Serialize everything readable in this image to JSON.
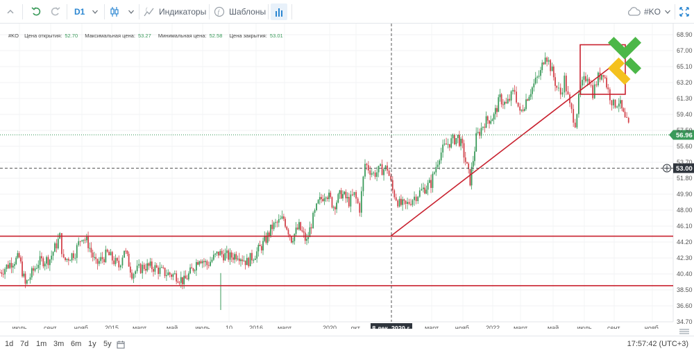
{
  "toolbar": {
    "timeframe": "D1",
    "indicators_label": "Индикаторы",
    "templates_label": "Шаблоны",
    "symbol": "#KO"
  },
  "ohlc": {
    "symbol": "#KO",
    "open_label": "Цена открытия:",
    "open_value": "52.70",
    "high_label": "Максимальная цена:",
    "high_value": "53.27",
    "low_label": "Минимальная цена:",
    "low_value": "52.58",
    "close_label": "Цена закрытия:",
    "close_value": "53.01"
  },
  "bottom": {
    "ranges": [
      "1d",
      "7d",
      "1m",
      "3m",
      "6m",
      "1y",
      "5y"
    ],
    "clock": "17:57:42 (UTC+3)"
  },
  "colors": {
    "up": "#3a9a5a",
    "down": "#d3434b",
    "annotation": "#c8202e",
    "price_badge": "#3a9a5a",
    "crosshair_badge": "#2f353d",
    "accent": "#2a86d1",
    "logo_green": "#4cb748",
    "logo_yellow": "#f4c11e"
  },
  "chart_data": {
    "type": "candlestick",
    "symbol": "#KO",
    "current_price": "56.96",
    "crosshair_price": "53.00",
    "crosshair_date": "8 дек. 2020 г.",
    "y_ticks": [
      "68.90",
      "67.00",
      "65.10",
      "63.20",
      "61.30",
      "59.40",
      "57.50",
      "55.60",
      "53.70",
      "51.80",
      "49.90",
      "48.00",
      "46.10",
      "44.20",
      "42.30",
      "40.40",
      "38.50",
      "36.60",
      "34.70"
    ],
    "x_ticks": [
      "июль",
      "сент.",
      "нояб.",
      "2015",
      "март",
      "май",
      "июль",
      "10",
      "2016",
      "март",
      "2020",
      "окт.",
      "март",
      "нояб.",
      "2022",
      "март",
      "май",
      "июль",
      "сент.",
      "нояб."
    ],
    "support_levels": [
      44.9,
      39.0
    ],
    "trendline": {
      "from": [
        "8 дек. 2020 г.",
        44.9
      ],
      "to": [
        "нояб. 2022",
        65.3
      ]
    },
    "highlight_box": {
      "price_range": [
        61.8,
        67.7
      ]
    },
    "price_path": [
      [
        0,
        40.6
      ],
      [
        1.5,
        41.8
      ],
      [
        2.5,
        42.3
      ],
      [
        3.3,
        39.1
      ],
      [
        5,
        41.8
      ],
      [
        6.5,
        42.2
      ],
      [
        7.8,
        44.8
      ],
      [
        8.3,
        41.9
      ],
      [
        9.8,
        43.0
      ],
      [
        10.7,
        45.0
      ],
      [
        11.5,
        44.0
      ],
      [
        12.5,
        41.5
      ],
      [
        14,
        42.8
      ],
      [
        15.5,
        41.3
      ],
      [
        16.2,
        43.4
      ],
      [
        17.2,
        40.5
      ],
      [
        18.8,
        41.3
      ],
      [
        20,
        41.2
      ],
      [
        21.5,
        40.5
      ],
      [
        23,
        40.2
      ],
      [
        24,
        39.5
      ],
      [
        25,
        40.8
      ],
      [
        26,
        42.4
      ],
      [
        27,
        41.5
      ],
      [
        28.5,
        42.9
      ],
      [
        30,
        42.4
      ],
      [
        31,
        42.8
      ],
      [
        32.2,
        41.8
      ],
      [
        33.5,
        43.0
      ],
      [
        34.5,
        44.2
      ],
      [
        35.5,
        46.0
      ],
      [
        37,
        47.0
      ],
      [
        38,
        44.6
      ],
      [
        39,
        46.0
      ],
      [
        40,
        44.2
      ],
      [
        40.6,
        46.4
      ],
      [
        41.5,
        48.8
      ],
      [
        42.5,
        50.2
      ],
      [
        43.5,
        48.5
      ],
      [
        44.5,
        50.0
      ],
      [
        45.5,
        49.0
      ],
      [
        46.2,
        49.8
      ],
      [
        46.9,
        48.2
      ],
      [
        47.6,
        53.5
      ],
      [
        48.7,
        52.3
      ],
      [
        49.6,
        52.8
      ],
      [
        50.5,
        53.0
      ],
      [
        51.2,
        50.3
      ],
      [
        52.1,
        48.7
      ],
      [
        52.9,
        48.5
      ],
      [
        53.8,
        49.4
      ],
      [
        55.2,
        50.5
      ],
      [
        56.2,
        51.2
      ],
      [
        57.3,
        54.6
      ],
      [
        58.2,
        55.8
      ],
      [
        59.7,
        56.7
      ],
      [
        60.3,
        55.4
      ],
      [
        61.3,
        51.5
      ],
      [
        62.1,
        56.6
      ],
      [
        63.2,
        58.5
      ],
      [
        64.4,
        59.2
      ],
      [
        65.2,
        61.3
      ],
      [
        66,
        60.5
      ],
      [
        67.1,
        62.3
      ],
      [
        67.8,
        59.4
      ],
      [
        68.8,
        61.6
      ],
      [
        69.4,
        62.6
      ],
      [
        70.5,
        64.4
      ],
      [
        71.1,
        66.8
      ],
      [
        72.0,
        64.5
      ],
      [
        72.6,
        62.6
      ],
      [
        73.1,
        61.8
      ],
      [
        73.6,
        63.6
      ],
      [
        74.3,
        60.3
      ],
      [
        75.0,
        58.5
      ],
      [
        75.7,
        62.5
      ],
      [
        76.6,
        64.2
      ],
      [
        77.3,
        62.0
      ],
      [
        78.0,
        63.8
      ],
      [
        78.7,
        64.5
      ],
      [
        79.3,
        62.2
      ],
      [
        80.0,
        60.5
      ],
      [
        80.7,
        61.0
      ],
      [
        81.5,
        58.7
      ],
      [
        82.2,
        57.6
      ]
    ]
  }
}
